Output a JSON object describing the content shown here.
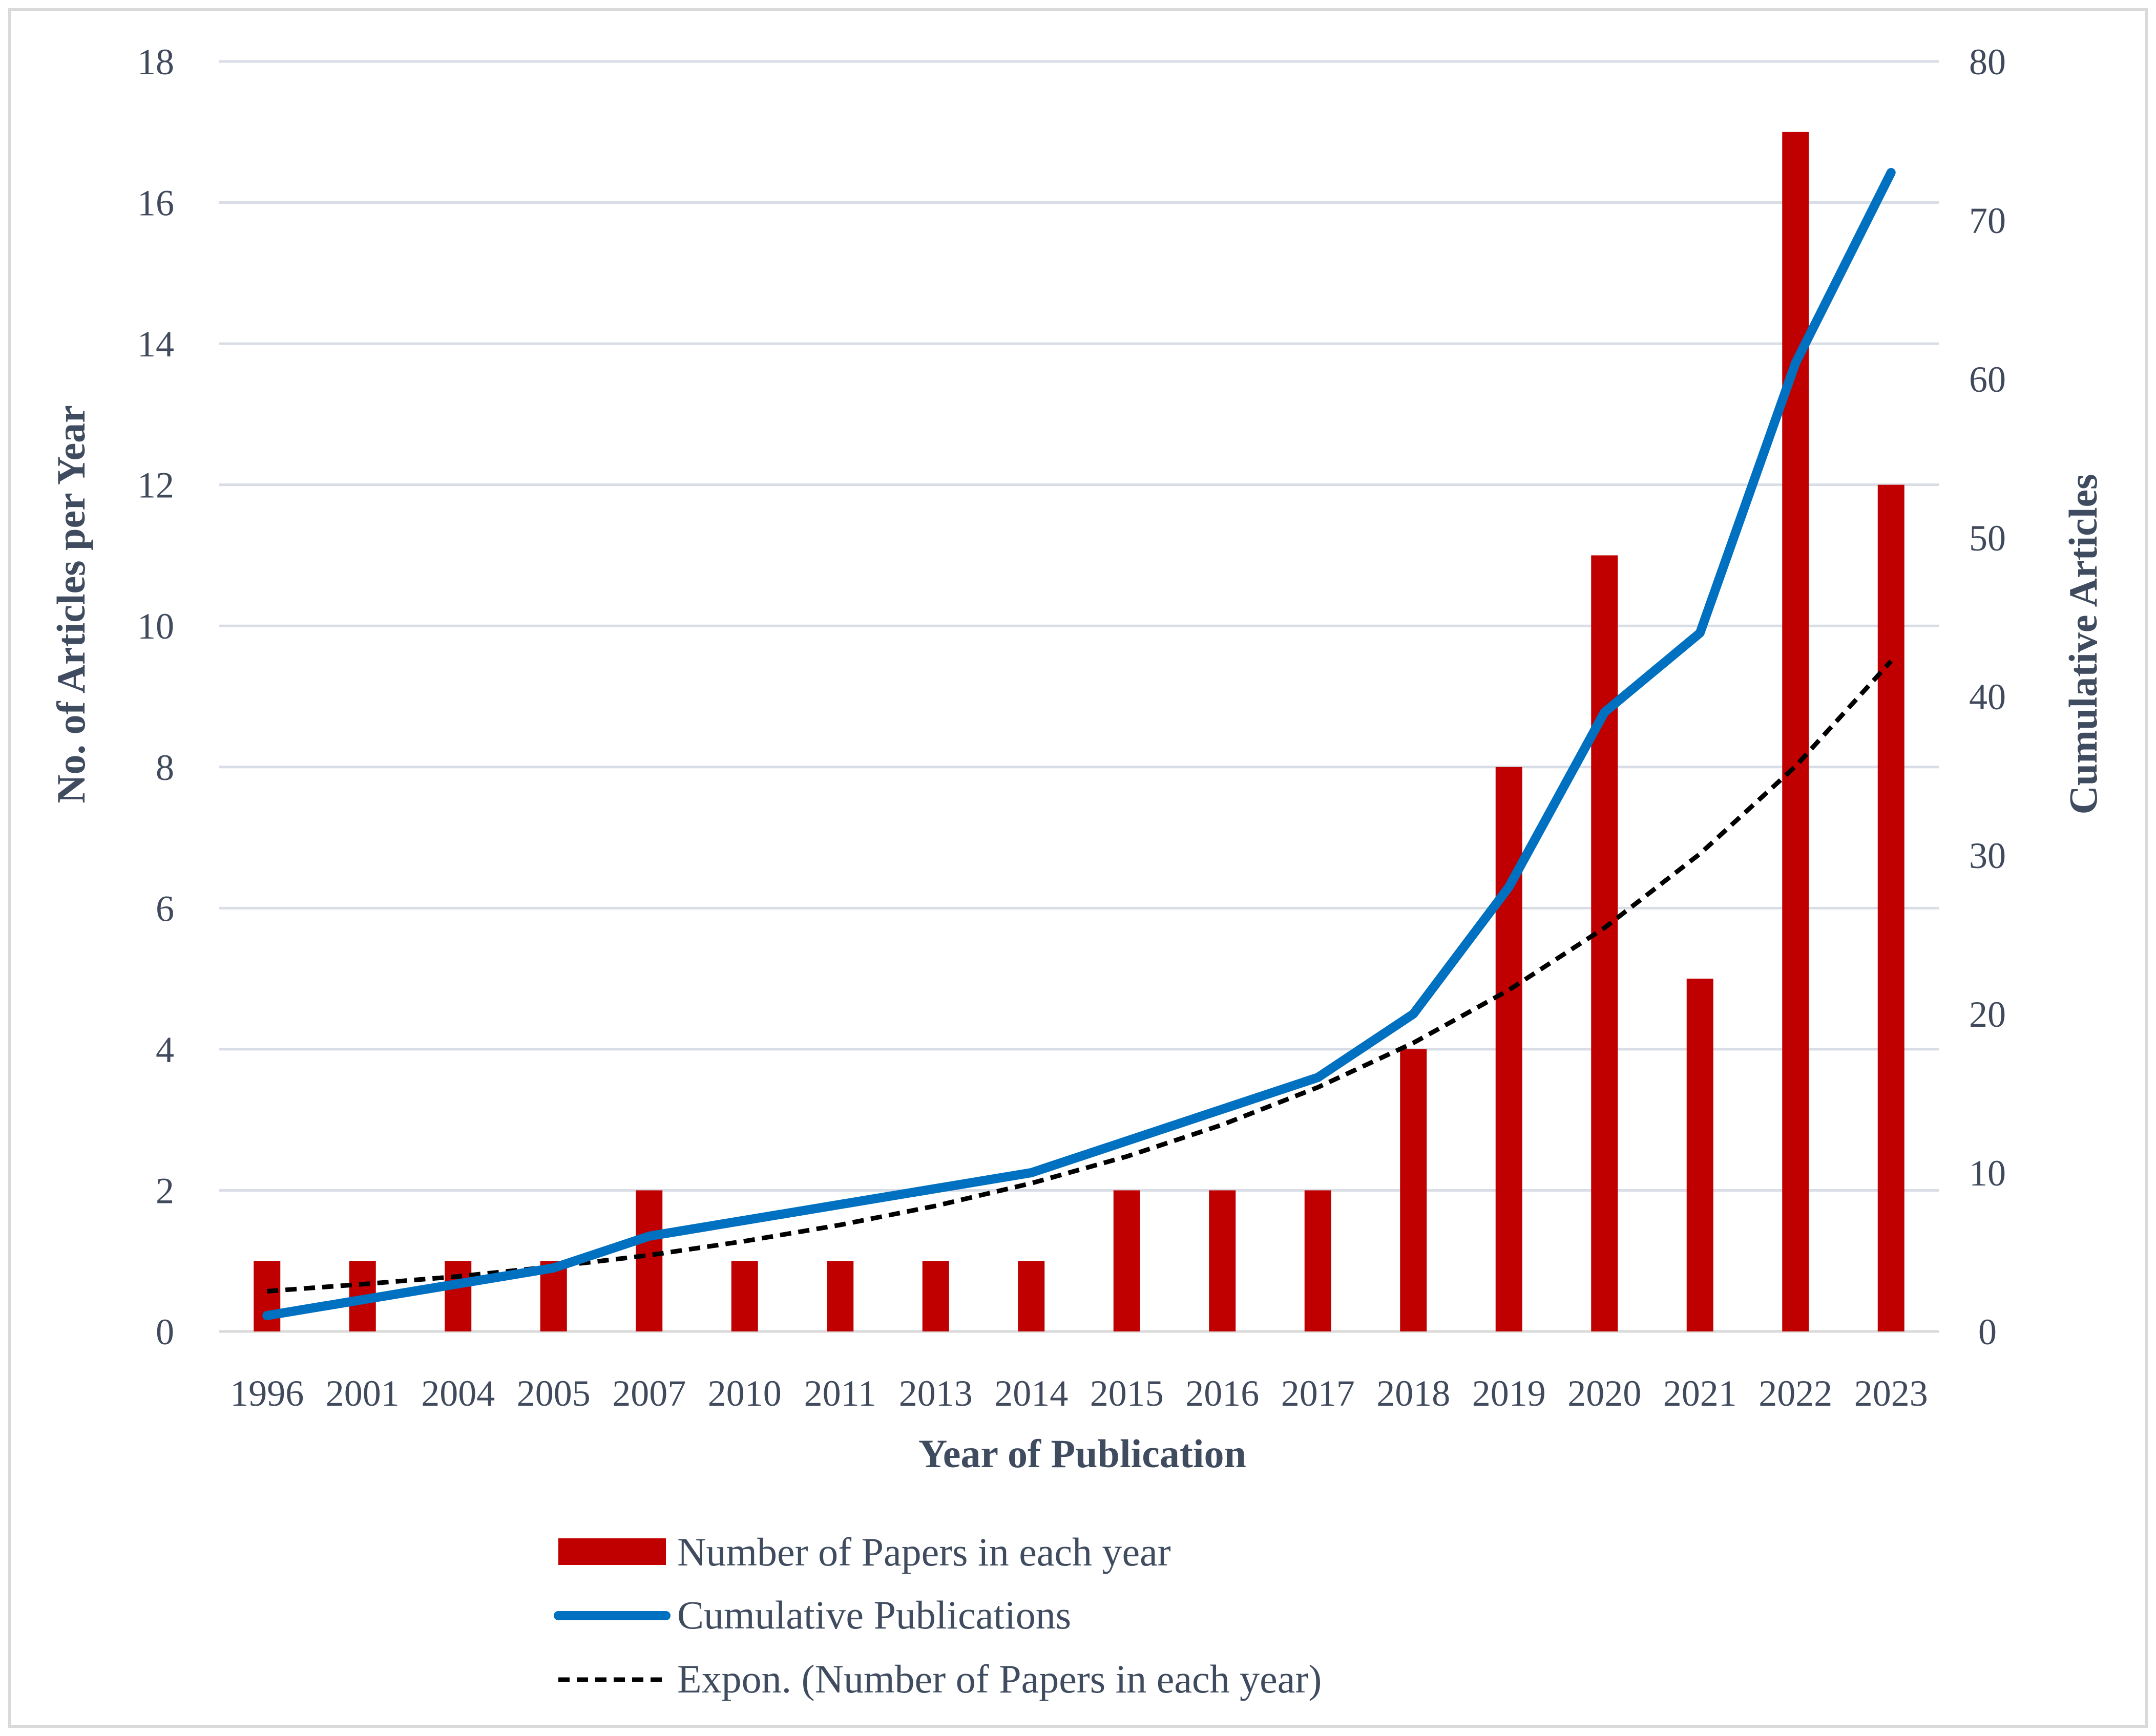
{
  "chart_data": {
    "type": "bar+line",
    "categories": [
      "1996",
      "2001",
      "2004",
      "2005",
      "2007",
      "2010",
      "2011",
      "2013",
      "2014",
      "2015",
      "2016",
      "2017",
      "2018",
      "2019",
      "2020",
      "2021",
      "2022",
      "2023"
    ],
    "series": [
      {
        "name": "Number of Papers in each year",
        "type": "bar",
        "axis": "left",
        "color": "#c00000",
        "values": [
          1,
          1,
          1,
          1,
          2,
          1,
          1,
          1,
          1,
          2,
          2,
          2,
          4,
          8,
          11,
          5,
          17,
          12
        ]
      },
      {
        "name": "Cumulative Publications",
        "type": "line",
        "axis": "right",
        "color": "#0070c0",
        "values": [
          1,
          2,
          3,
          4,
          6,
          7,
          8,
          9,
          10,
          12,
          14,
          16,
          20,
          28,
          39,
          44,
          61,
          73
        ]
      },
      {
        "name": "Expon. (Number of Papers in each year)",
        "type": "trendline-dashed",
        "axis": "left",
        "color": "#000000",
        "values": [
          0.57,
          0.67,
          0.78,
          0.92,
          1.08,
          1.28,
          1.51,
          1.78,
          2.1,
          2.48,
          2.93,
          3.46,
          4.09,
          4.84,
          5.72,
          6.77,
          8.01,
          9.5
        ]
      }
    ],
    "xlabel": "Year of Publication",
    "ylabel": "No. of Articles per Year",
    "y2label": "Cumulative Articles",
    "ylim": [
      0,
      18
    ],
    "yticks": [
      0,
      2,
      4,
      6,
      8,
      10,
      12,
      14,
      16,
      18
    ],
    "y2lim": [
      0,
      80
    ],
    "y2ticks": [
      0,
      10,
      20,
      30,
      40,
      50,
      60,
      70,
      80
    ],
    "grid": true,
    "legend_position": "bottom"
  }
}
